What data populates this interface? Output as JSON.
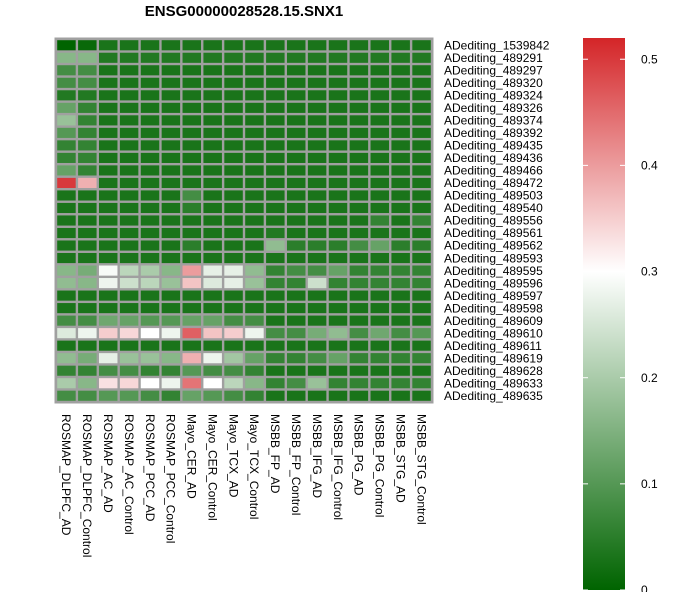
{
  "chart_data": {
    "type": "heatmap",
    "title": "ENSG00000028528.15.SNX1",
    "rows": [
      "ADediting_1539842",
      "ADediting_489291",
      "ADediting_489297",
      "ADediting_489320",
      "ADediting_489324",
      "ADediting_489326",
      "ADediting_489374",
      "ADediting_489392",
      "ADediting_489435",
      "ADediting_489436",
      "ADediting_489466",
      "ADediting_489472",
      "ADediting_489503",
      "ADediting_489540",
      "ADediting_489556",
      "ADediting_489561",
      "ADediting_489562",
      "ADediting_489593",
      "ADediting_489595",
      "ADediting_489596",
      "ADediting_489597",
      "ADediting_489598",
      "ADediting_489609",
      "ADediting_489610",
      "ADediting_489611",
      "ADediting_489619",
      "ADediting_489628",
      "ADediting_489633",
      "ADediting_489635"
    ],
    "columns": [
      "ROSMAP_DLPFC_AD",
      "ROSMAP_DLPFC_Control",
      "ROSMAP_AC_AD",
      "ROSMAP_AC_Control",
      "ROSMAP_PCC_AD",
      "ROSMAP_PCC_Control",
      "Mayo_CER_AD",
      "Mayo_CER_Control",
      "Mayo_TCX_AD",
      "Mayo_TCX_Control",
      "MSBB_FP_AD",
      "MSBB_FP_Control",
      "MSBB_IFG_AD",
      "MSBB_IFG_Control",
      "MSBB_PG_AD",
      "MSBB_PG_Control",
      "MSBB_STG_AD",
      "MSBB_STG_Control"
    ],
    "values": [
      [
        0.0,
        0.01,
        0.03,
        0.03,
        0.03,
        0.03,
        0.03,
        0.03,
        0.03,
        0.03,
        0.03,
        0.03,
        0.03,
        0.03,
        0.03,
        0.03,
        0.03,
        0.03
      ],
      [
        0.16,
        0.16,
        0.04,
        0.04,
        0.04,
        0.04,
        0.04,
        0.04,
        0.04,
        0.04,
        0.04,
        0.04,
        0.04,
        0.04,
        0.04,
        0.04,
        0.04,
        0.04
      ],
      [
        0.08,
        0.08,
        0.03,
        0.03,
        0.03,
        0.03,
        0.03,
        0.03,
        0.03,
        0.03,
        0.03,
        0.03,
        0.03,
        0.03,
        0.03,
        0.03,
        0.03,
        0.03
      ],
      [
        0.08,
        0.08,
        0.03,
        0.03,
        0.03,
        0.03,
        0.03,
        0.03,
        0.03,
        0.03,
        0.03,
        0.03,
        0.03,
        0.03,
        0.03,
        0.03,
        0.03,
        0.03
      ],
      [
        0.04,
        0.04,
        0.03,
        0.03,
        0.03,
        0.03,
        0.03,
        0.03,
        0.03,
        0.03,
        0.03,
        0.03,
        0.03,
        0.03,
        0.03,
        0.03,
        0.03,
        0.03
      ],
      [
        0.12,
        0.06,
        0.03,
        0.03,
        0.03,
        0.03,
        0.03,
        0.03,
        0.03,
        0.03,
        0.03,
        0.03,
        0.03,
        0.03,
        0.03,
        0.03,
        0.03,
        0.03
      ],
      [
        0.18,
        0.06,
        0.03,
        0.03,
        0.03,
        0.03,
        0.03,
        0.03,
        0.03,
        0.03,
        0.03,
        0.03,
        0.03,
        0.03,
        0.03,
        0.03,
        0.03,
        0.03
      ],
      [
        0.1,
        0.06,
        0.03,
        0.03,
        0.03,
        0.03,
        0.03,
        0.03,
        0.03,
        0.03,
        0.03,
        0.03,
        0.03,
        0.03,
        0.03,
        0.03,
        0.03,
        0.03
      ],
      [
        0.06,
        0.06,
        0.03,
        0.03,
        0.03,
        0.03,
        0.03,
        0.03,
        0.03,
        0.03,
        0.03,
        0.03,
        0.03,
        0.03,
        0.03,
        0.03,
        0.03,
        0.03
      ],
      [
        0.06,
        0.06,
        0.03,
        0.03,
        0.03,
        0.03,
        0.03,
        0.03,
        0.03,
        0.03,
        0.03,
        0.03,
        0.03,
        0.03,
        0.03,
        0.03,
        0.03,
        0.03
      ],
      [
        0.12,
        0.06,
        0.03,
        0.03,
        0.03,
        0.03,
        0.03,
        0.03,
        0.03,
        0.03,
        0.03,
        0.03,
        0.03,
        0.03,
        0.03,
        0.03,
        0.03,
        0.03
      ],
      [
        0.5,
        0.38,
        0.03,
        0.03,
        0.03,
        0.03,
        0.03,
        0.03,
        0.03,
        0.03,
        0.03,
        0.03,
        0.03,
        0.03,
        0.03,
        0.03,
        0.03,
        0.03
      ],
      [
        0.03,
        0.03,
        0.03,
        0.03,
        0.03,
        0.03,
        0.08,
        0.03,
        0.03,
        0.03,
        0.03,
        0.03,
        0.03,
        0.03,
        0.03,
        0.03,
        0.03,
        0.03
      ],
      [
        0.03,
        0.03,
        0.03,
        0.03,
        0.03,
        0.03,
        0.05,
        0.03,
        0.03,
        0.03,
        0.03,
        0.03,
        0.03,
        0.03,
        0.03,
        0.03,
        0.03,
        0.03
      ],
      [
        0.03,
        0.03,
        0.03,
        0.03,
        0.03,
        0.03,
        0.03,
        0.03,
        0.03,
        0.03,
        0.03,
        0.03,
        0.03,
        0.03,
        0.03,
        0.06,
        0.03,
        0.06
      ],
      [
        0.03,
        0.03,
        0.03,
        0.03,
        0.03,
        0.03,
        0.03,
        0.03,
        0.03,
        0.03,
        0.04,
        0.03,
        0.03,
        0.03,
        0.03,
        0.03,
        0.03,
        0.03
      ],
      [
        0.03,
        0.03,
        0.03,
        0.03,
        0.03,
        0.03,
        0.05,
        0.03,
        0.03,
        0.03,
        0.17,
        0.05,
        0.05,
        0.05,
        0.08,
        0.12,
        0.05,
        0.05
      ],
      [
        0.03,
        0.03,
        0.03,
        0.03,
        0.03,
        0.03,
        0.03,
        0.03,
        0.03,
        0.03,
        0.03,
        0.03,
        0.03,
        0.03,
        0.03,
        0.03,
        0.03,
        0.03
      ],
      [
        0.16,
        0.14,
        0.29,
        0.22,
        0.2,
        0.16,
        0.4,
        0.27,
        0.27,
        0.17,
        0.06,
        0.08,
        0.08,
        0.12,
        0.06,
        0.06,
        0.06,
        0.06
      ],
      [
        0.17,
        0.16,
        0.28,
        0.24,
        0.22,
        0.18,
        0.36,
        0.26,
        0.27,
        0.18,
        0.06,
        0.06,
        0.24,
        0.06,
        0.06,
        0.06,
        0.06,
        0.06
      ],
      [
        0.03,
        0.03,
        0.03,
        0.03,
        0.03,
        0.03,
        0.03,
        0.03,
        0.03,
        0.03,
        0.03,
        0.03,
        0.03,
        0.03,
        0.03,
        0.03,
        0.03,
        0.03
      ],
      [
        0.03,
        0.03,
        0.03,
        0.03,
        0.03,
        0.03,
        0.03,
        0.03,
        0.03,
        0.03,
        0.03,
        0.03,
        0.03,
        0.03,
        0.03,
        0.03,
        0.03,
        0.03
      ],
      [
        0.08,
        0.08,
        0.13,
        0.12,
        0.1,
        0.1,
        0.12,
        0.12,
        0.08,
        0.08,
        0.03,
        0.03,
        0.03,
        0.03,
        0.03,
        0.03,
        0.03,
        0.03
      ],
      [
        0.26,
        0.28,
        0.35,
        0.34,
        0.3,
        0.28,
        0.46,
        0.36,
        0.35,
        0.28,
        0.08,
        0.08,
        0.14,
        0.17,
        0.08,
        0.13,
        0.08,
        0.1
      ],
      [
        0.03,
        0.03,
        0.03,
        0.03,
        0.03,
        0.03,
        0.03,
        0.03,
        0.03,
        0.03,
        0.03,
        0.03,
        0.03,
        0.03,
        0.03,
        0.03,
        0.03,
        0.03
      ],
      [
        0.17,
        0.14,
        0.27,
        0.18,
        0.18,
        0.16,
        0.38,
        0.28,
        0.19,
        0.12,
        0.06,
        0.06,
        0.08,
        0.12,
        0.06,
        0.06,
        0.06,
        0.06
      ],
      [
        0.06,
        0.06,
        0.08,
        0.08,
        0.06,
        0.06,
        0.1,
        0.08,
        0.08,
        0.06,
        0.03,
        0.03,
        0.03,
        0.03,
        0.03,
        0.03,
        0.03,
        0.03
      ],
      [
        0.2,
        0.16,
        0.33,
        0.34,
        0.3,
        0.28,
        0.44,
        0.3,
        0.22,
        0.16,
        0.06,
        0.08,
        0.18,
        0.06,
        0.06,
        0.06,
        0.06,
        0.06
      ],
      [
        0.08,
        0.08,
        0.1,
        0.1,
        0.08,
        0.06,
        0.12,
        0.1,
        0.08,
        0.06,
        0.03,
        0.03,
        0.03,
        0.03,
        0.03,
        0.03,
        0.03,
        0.03
      ]
    ],
    "colorbar": {
      "range": [
        0,
        0.52
      ],
      "ticks": [
        0,
        0.1,
        0.2,
        0.3,
        0.4,
        0.5
      ],
      "tick_labels": [
        "0",
        "0.1",
        "0.2",
        "0.3",
        "0.4",
        "0.5"
      ],
      "colors": {
        "low": "#006400",
        "mid": "#ffffff",
        "high": "#d42528"
      },
      "midpoint": 0.3
    },
    "grid_color": "#a0a0a0"
  }
}
